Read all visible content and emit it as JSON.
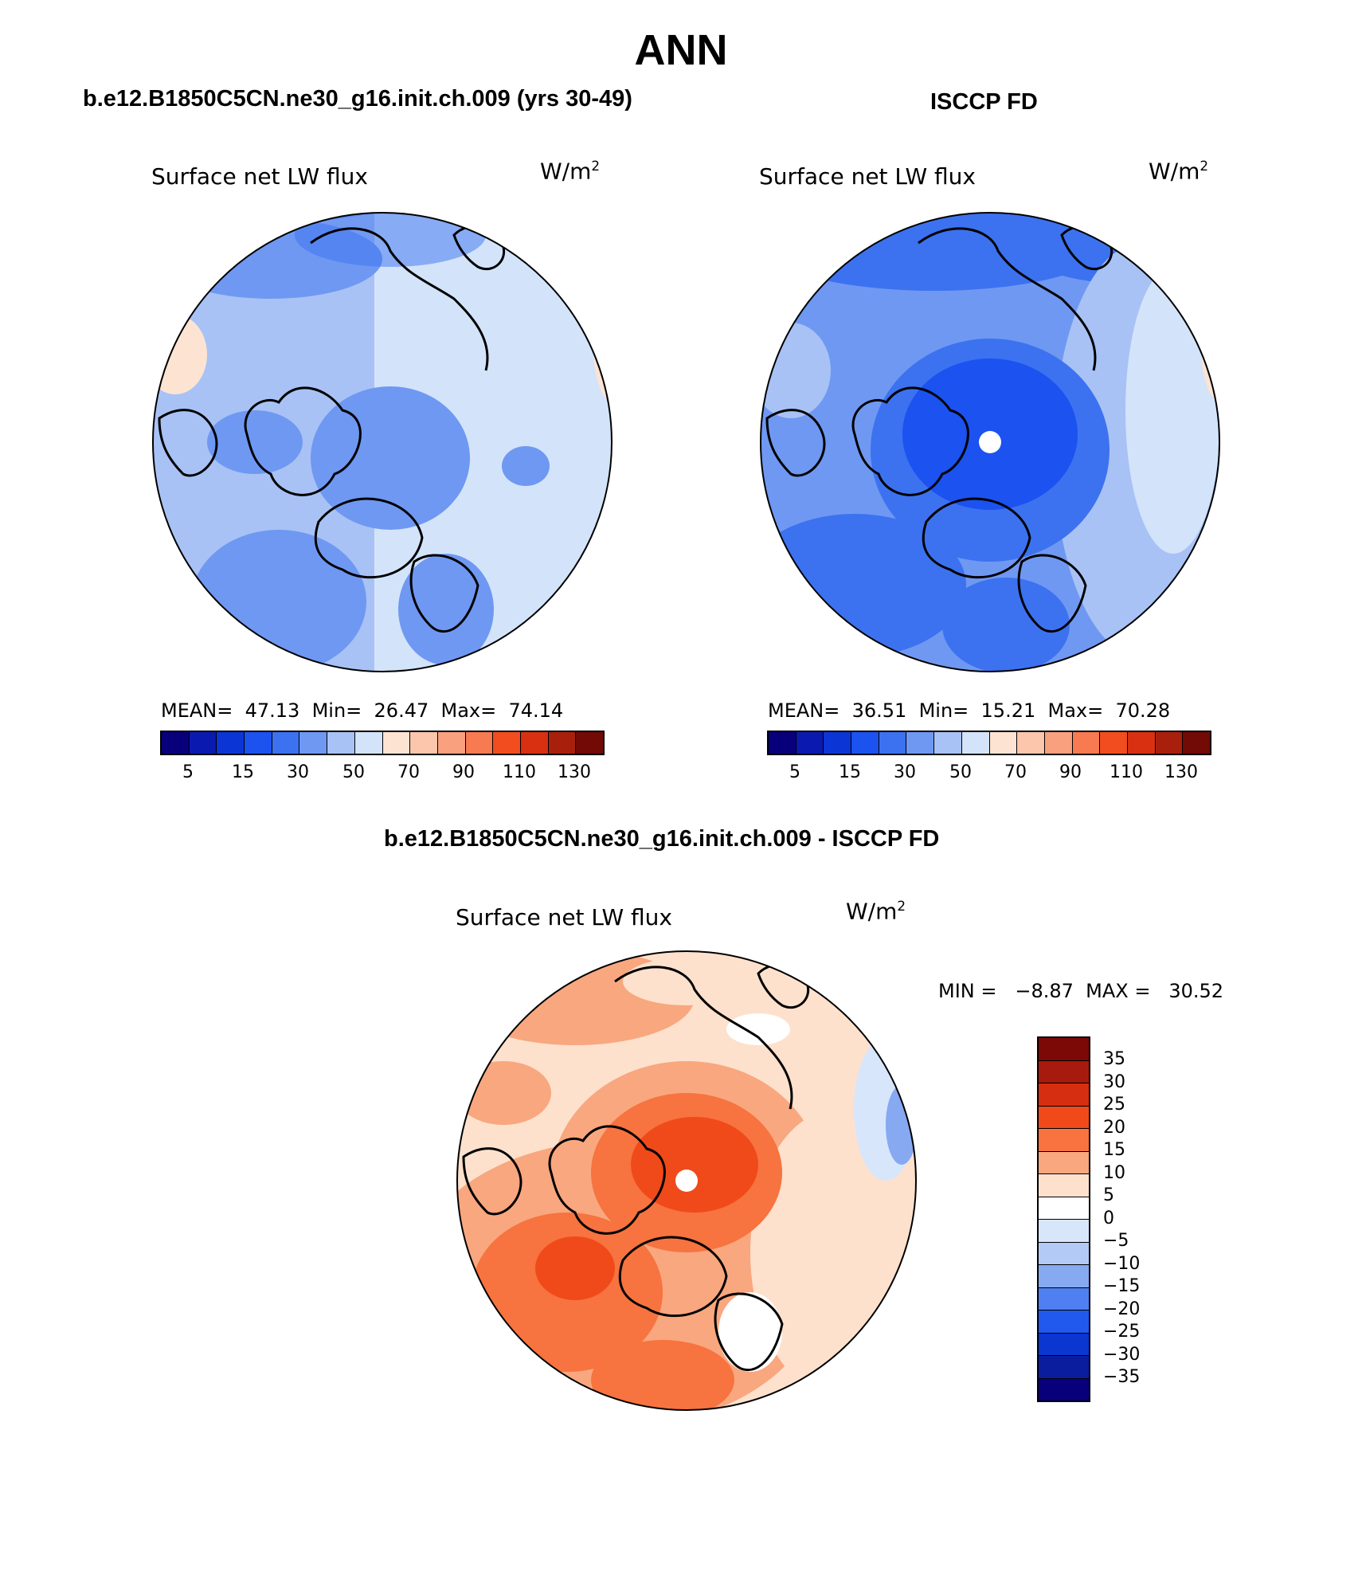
{
  "figure": {
    "title": "ANN"
  },
  "panels": [
    {
      "title": "b.e12.B1850C5CN.ne30_g16.init.ch.009 (yrs 30-49)",
      "variable": "Surface net LW flux",
      "units": "W/m",
      "units_exp": "2",
      "stats": "MEAN=  47.13  Min=  26.47  Max=  74.14",
      "colorbar_ticks": [
        "5",
        "15",
        "30",
        "50",
        "70",
        "90",
        "110",
        "130"
      ],
      "pole_marker": false
    },
    {
      "title": "ISCCP FD",
      "variable": "Surface net LW flux",
      "units": "W/m",
      "units_exp": "2",
      "stats": "MEAN=  36.51  Min=  15.21  Max=  70.28",
      "colorbar_ticks": [
        "5",
        "15",
        "30",
        "50",
        "70",
        "90",
        "110",
        "130"
      ],
      "pole_marker": true
    },
    {
      "title": "b.e12.B1850C5CN.ne30_g16.init.ch.009 - ISCCP FD",
      "variable": "Surface net LW flux",
      "units": "W/m",
      "units_exp": "2",
      "stats": "MIN =   −8.87  MAX =   30.52",
      "colorbar_ticks": [
        "35",
        "30",
        "25",
        "20",
        "15",
        "10",
        "5",
        "0",
        "−5",
        "−10",
        "−15",
        "−20",
        "−25",
        "−30",
        "−35"
      ],
      "pole_marker": true
    }
  ],
  "colors": {
    "abs_scale": [
      "#08007a",
      "#0a1ab0",
      "#0c35d6",
      "#1b52f0",
      "#3c72f0",
      "#6f98f2",
      "#a8c2f5",
      "#d3e4fa",
      "#fde3d2",
      "#fbc6ac",
      "#f9a07e",
      "#f87a50",
      "#f24d1f",
      "#d93012",
      "#a8200c",
      "#720a06"
    ],
    "diff_scale": [
      "#7d0906",
      "#a61b0d",
      "#d62e10",
      "#f04a1a",
      "#f7733f",
      "#f9a77f",
      "#fde1cd",
      "#ffffff",
      "#d7e6fb",
      "#b2caf5",
      "#86a9f2",
      "#4f7ff0",
      "#2158ee",
      "#0b36cf",
      "#0a1d9e",
      "#08007a"
    ]
  }
}
